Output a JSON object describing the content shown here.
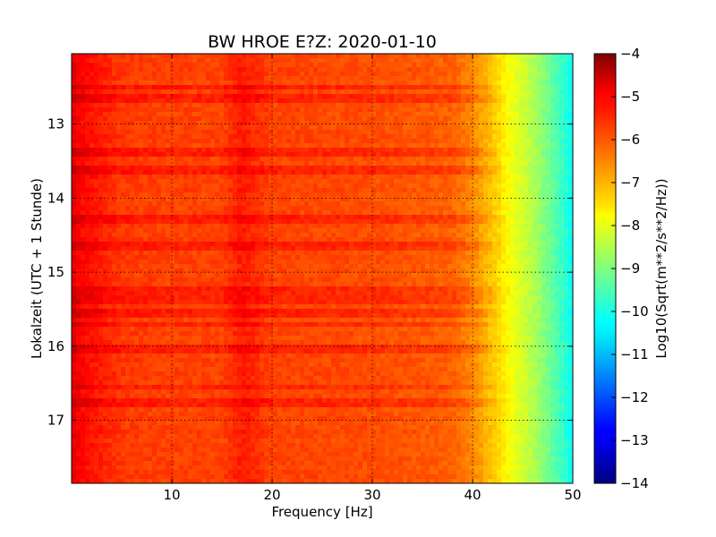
{
  "chart_data": {
    "type": "heatmap",
    "title": "BW HROE E?Z: 2020-01-10",
    "xlabel": "Frequency [Hz]",
    "ylabel": "Lokalzeit (UTC + 1 Stunde)",
    "colorbar_label": "Log10(Sqrt(m**2/s**2/Hz))",
    "xlim": [
      0,
      50
    ],
    "ylim": [
      12.05,
      17.85
    ],
    "y_inverted": true,
    "x_ticks": [
      10,
      20,
      30,
      40,
      50
    ],
    "x_tick_labels": [
      "10",
      "20",
      "30",
      "40",
      "50"
    ],
    "y_ticks": [
      13,
      14,
      15,
      16,
      17
    ],
    "y_tick_labels": [
      "13",
      "14",
      "15",
      "16",
      "17"
    ],
    "colorbar_range": [
      -14,
      -4
    ],
    "colorbar_ticks": [
      -4,
      -5,
      -6,
      -7,
      -8,
      -9,
      -10,
      -11,
      -12,
      -13,
      -14
    ],
    "colorbar_tick_labels": [
      "−4",
      "−5",
      "−6",
      "−7",
      "−8",
      "−9",
      "−10",
      "−11",
      "−12",
      "−13",
      "−14"
    ],
    "colormap": "jet",
    "grid": true,
    "spectrum_profile": {
      "frequency_hz": [
        0,
        1,
        5,
        10,
        15,
        17,
        20,
        30,
        38,
        40,
        42,
        44,
        46,
        48,
        50
      ],
      "log10_amplitude": [
        -5.0,
        -5.3,
        -5.8,
        -5.9,
        -5.9,
        -5.5,
        -5.9,
        -6.0,
        -6.2,
        -6.6,
        -7.2,
        -7.9,
        -8.5,
        -9.3,
        -10.2
      ]
    },
    "strong_time_bands_hour": [
      12.5,
      12.65,
      13.4,
      13.6,
      14.3,
      14.65,
      15.25,
      15.35,
      15.55,
      15.7,
      16.05,
      16.55,
      16.75
    ]
  }
}
